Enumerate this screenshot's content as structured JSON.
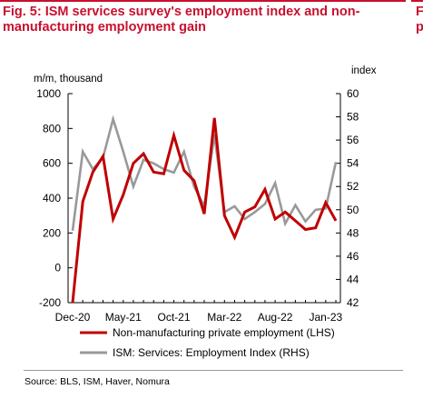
{
  "title": "Fig. 5: ISM services survey's employment index and non-manufacturing employment gain",
  "side_clip": {
    "lines": [
      "F",
      "p"
    ]
  },
  "source": "Source: BLS, ISM, Haver, Nomura",
  "chart_data": {
    "type": "line",
    "x": [
      "2020-12",
      "2021-01",
      "2021-02",
      "2021-03",
      "2021-04",
      "2021-05",
      "2021-06",
      "2021-07",
      "2021-08",
      "2021-09",
      "2021-10",
      "2021-11",
      "2021-12",
      "2022-01",
      "2022-02",
      "2022-03",
      "2022-04",
      "2022-05",
      "2022-06",
      "2022-07",
      "2022-08",
      "2022-09",
      "2022-10",
      "2022-11",
      "2022-12",
      "2023-01",
      "2023-02"
    ],
    "x_tick_labels": [
      "Dec-20",
      "May-21",
      "Oct-21",
      "Mar-22",
      "Aug-22",
      "Jan-23"
    ],
    "x_tick_index": [
      0,
      5,
      10,
      15,
      20,
      25
    ],
    "left_axis": {
      "label": "m/m, thousand",
      "range": [
        -200,
        1000
      ],
      "ticks": [
        "-200",
        "0",
        "200",
        "400",
        "600",
        "800",
        "1000"
      ]
    },
    "right_axis": {
      "label": "index",
      "range": [
        42,
        60
      ],
      "ticks": [
        "42",
        "44",
        "46",
        "48",
        "50",
        "52",
        "54",
        "56",
        "58",
        "60"
      ]
    },
    "series": [
      {
        "name": "Non-manufacturing private employment (LHS)",
        "axis": "left",
        "color": "#c00000",
        "values": [
          -200,
          380,
          550,
          640,
          280,
          420,
          600,
          655,
          550,
          540,
          760,
          560,
          500,
          310,
          860,
          300,
          175,
          320,
          350,
          450,
          280,
          320,
          270,
          220,
          230,
          375,
          270
        ]
      },
      {
        "name": "ISM: Services: Employment Index (RHS)",
        "axis": "right",
        "color": "#999999",
        "values": [
          48.2,
          55.0,
          53.5,
          54.5,
          57.8,
          55.0,
          52.0,
          54.3,
          54.0,
          53.5,
          53.2,
          55.0,
          52.0,
          50.3,
          56.5,
          49.8,
          50.3,
          49.2,
          49.8,
          50.5,
          52.3,
          48.8,
          50.4,
          49.0,
          50.0,
          50.1,
          54.1
        ]
      }
    ],
    "legend": "bottom",
    "grid": false
  }
}
